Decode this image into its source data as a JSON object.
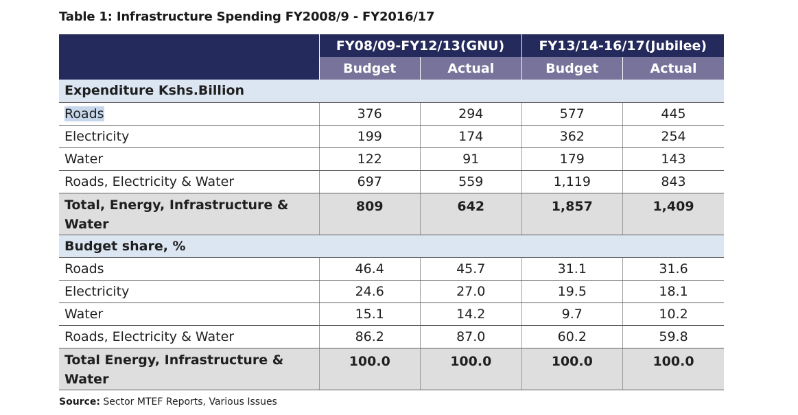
{
  "title": "Table 1:  Infrastructure Spending FY2008/9 - FY2016/17",
  "header": {
    "group1": "FY08/09-FY12/13(GNU)",
    "group2": "FY13/14-16/17(Jubilee)",
    "sub": [
      "Budget",
      "Actual",
      "Budget",
      "Actual"
    ]
  },
  "section1": {
    "heading": "Expenditure Kshs.Billion",
    "rows": [
      {
        "label": "Roads",
        "values": [
          "376",
          "294",
          "577",
          "445"
        ]
      },
      {
        "label": "Electricity",
        "values": [
          "199",
          "174",
          "362",
          "254"
        ]
      },
      {
        "label": "Water",
        "values": [
          "122",
          "91",
          "179",
          "143"
        ]
      },
      {
        "label": "Roads, Electricity & Water",
        "values": [
          "697",
          "559",
          "1,119",
          "843"
        ]
      }
    ],
    "total": {
      "label": "Total, Energy, Infrastructure & Water",
      "values": [
        "809",
        "642",
        "1,857",
        "1,409"
      ]
    }
  },
  "section2": {
    "heading": "Budget share, %",
    "rows": [
      {
        "label": "Roads",
        "values": [
          "46.4",
          "45.7",
          "31.1",
          "31.6"
        ]
      },
      {
        "label": "Electricity",
        "values": [
          "24.6",
          "27.0",
          "19.5",
          "18.1"
        ]
      },
      {
        "label": "Water",
        "values": [
          "15.1",
          "14.2",
          "9.7",
          "10.2"
        ]
      },
      {
        "label": "Roads, Electricity & Water",
        "values": [
          "86.2",
          "87.0",
          "60.2",
          "59.8"
        ]
      }
    ],
    "total": {
      "label": "Total Energy, Infrastructure & Water",
      "values": [
        "100.0",
        "100.0",
        "100.0",
        "100.0"
      ]
    }
  },
  "source": {
    "label": "Source:",
    "text": " Sector MTEF Reports, Various Issues"
  }
}
